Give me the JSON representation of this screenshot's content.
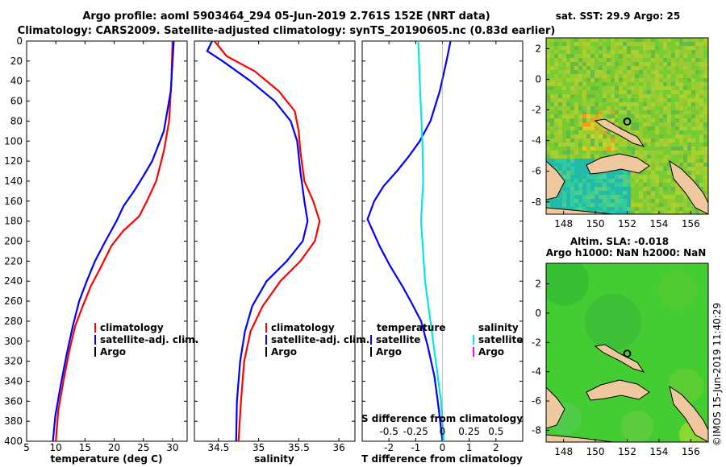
{
  "header": {
    "line1": "Argo profile: aoml 5903464_294 05-Jun-2019 2.761S 152E (NRT data)",
    "line2": "Climatology: CARS2009. Satellite-adjusted climatology: synTS_20190605.nc (0.83d earlier)"
  },
  "side_stamp": "©IMOS 15-Jun-2019 11:40:29",
  "colors": {
    "red": "#ff0000",
    "blue": "#0000ff",
    "cyan": "#00e5ee",
    "black": "#000000",
    "land": "#f0c8a0",
    "magenta": "#ff00ff"
  },
  "chart_data": [
    {
      "type": "line",
      "name": "temperature-profile",
      "xlabel": "temperature (deg C)",
      "xlim": [
        5,
        32.5
      ],
      "ylim": [
        0,
        400
      ],
      "xticks": [
        "5",
        "10",
        "15",
        "20",
        "25",
        "30"
      ],
      "yticks": [
        "0",
        "20",
        "40",
        "60",
        "80",
        "100",
        "120",
        "140",
        "160",
        "180",
        "200",
        "220",
        "240",
        "260",
        "280",
        "300",
        "320",
        "340",
        "360",
        "380",
        "400"
      ],
      "legend": [
        "climatology",
        "satellite-adj. clim.",
        "Argo"
      ],
      "series": [
        {
          "name": "climatology",
          "color": "#ff0000",
          "points": [
            [
              30,
              0
            ],
            [
              29.8,
              40
            ],
            [
              29.4,
              80
            ],
            [
              28.5,
              110
            ],
            [
              27.2,
              140
            ],
            [
              25.6,
              160
            ],
            [
              24.3,
              175
            ],
            [
              21.5,
              190
            ],
            [
              19.5,
              205
            ],
            [
              17.8,
              225
            ],
            [
              16,
              245
            ],
            [
              14.6,
              265
            ],
            [
              13.3,
              285
            ],
            [
              12.3,
              310
            ],
            [
              11.3,
              340
            ],
            [
              10.4,
              370
            ],
            [
              10,
              400
            ]
          ]
        },
        {
          "name": "satellite-adj. clim.",
          "color": "#0000ff",
          "points": [
            [
              30.2,
              0
            ],
            [
              30,
              20
            ],
            [
              29.7,
              50
            ],
            [
              28.5,
              90
            ],
            [
              26.5,
              120
            ],
            [
              25,
              135
            ],
            [
              23.4,
              150
            ],
            [
              21.6,
              165
            ],
            [
              20.4,
              180
            ],
            [
              18.5,
              200
            ],
            [
              16.7,
              220
            ],
            [
              15.3,
              240
            ],
            [
              14,
              260
            ],
            [
              12.9,
              285
            ],
            [
              11.8,
              315
            ],
            [
              10.8,
              345
            ],
            [
              9.9,
              375
            ],
            [
              9.5,
              400
            ]
          ]
        }
      ]
    },
    {
      "type": "line",
      "name": "salinity-profile",
      "xlabel": "salinity",
      "xlim": [
        34.2,
        36.2
      ],
      "ylim": [
        0,
        400
      ],
      "xticks": [
        "34.5",
        "35",
        "35.5",
        "36"
      ],
      "legend": [
        "climatology",
        "satellite-adj. clim.",
        "Argo"
      ],
      "series": [
        {
          "name": "climatology",
          "color": "#ff0000",
          "points": [
            [
              34.45,
              0
            ],
            [
              34.6,
              15
            ],
            [
              34.95,
              30
            ],
            [
              35.25,
              50
            ],
            [
              35.45,
              70
            ],
            [
              35.5,
              90
            ],
            [
              35.52,
              110
            ],
            [
              35.57,
              140
            ],
            [
              35.68,
              160
            ],
            [
              35.76,
              180
            ],
            [
              35.7,
              200
            ],
            [
              35.52,
              220
            ],
            [
              35.27,
              240
            ],
            [
              35.05,
              265
            ],
            [
              34.9,
              290
            ],
            [
              34.82,
              320
            ],
            [
              34.78,
              360
            ],
            [
              34.75,
              400
            ]
          ]
        },
        {
          "name": "satellite-adj. clim.",
          "color": "#0000ff",
          "points": [
            [
              34.42,
              0
            ],
            [
              34.36,
              10
            ],
            [
              34.55,
              20
            ],
            [
              34.9,
              40
            ],
            [
              35.2,
              60
            ],
            [
              35.4,
              80
            ],
            [
              35.48,
              100
            ],
            [
              35.52,
              130
            ],
            [
              35.57,
              160
            ],
            [
              35.61,
              180
            ],
            [
              35.55,
              200
            ],
            [
              35.35,
              220
            ],
            [
              35.1,
              240
            ],
            [
              34.92,
              265
            ],
            [
              34.83,
              290
            ],
            [
              34.77,
              320
            ],
            [
              34.73,
              360
            ],
            [
              34.72,
              400
            ]
          ]
        }
      ]
    },
    {
      "type": "line",
      "name": "difference-profile",
      "xlabel": "T difference from climatology",
      "xlabel_top": "S difference from climatology",
      "xlim": [
        -3,
        3
      ],
      "ylim": [
        0,
        400
      ],
      "xticks": [
        "-2",
        "-1",
        "0",
        "1",
        "2"
      ],
      "xticks_s": [
        "-0.5",
        "-0.25",
        "0",
        "0.25",
        "0.5"
      ],
      "legend": {
        "temperature_title": "temperature",
        "salinity_title": "salinity",
        "satellite": "satellite",
        "argo": "Argo"
      },
      "series": [
        {
          "name": "temperature satellite",
          "color": "#0000ff",
          "points": [
            [
              0.3,
              0
            ],
            [
              0.15,
              20
            ],
            [
              -0.1,
              50
            ],
            [
              -0.45,
              80
            ],
            [
              -0.85,
              100
            ],
            [
              -1.25,
              115
            ],
            [
              -1.7,
              130
            ],
            [
              -2.2,
              145
            ],
            [
              -2.55,
              160
            ],
            [
              -2.8,
              178
            ],
            [
              -2.6,
              190
            ],
            [
              -2.35,
              205
            ],
            [
              -1.95,
              225
            ],
            [
              -1.5,
              245
            ],
            [
              -1.15,
              262
            ],
            [
              -0.8,
              280
            ],
            [
              -0.55,
              305
            ],
            [
              -0.3,
              335
            ],
            [
              -0.15,
              365
            ],
            [
              0,
              400
            ]
          ]
        },
        {
          "name": "salinity satellite",
          "color": "#00e5ee",
          "points": [
            [
              -0.9,
              0
            ],
            [
              -0.85,
              40
            ],
            [
              -0.75,
              100
            ],
            [
              -0.72,
              140
            ],
            [
              -0.8,
              180
            ],
            [
              -0.75,
              200
            ],
            [
              -0.65,
              240
            ],
            [
              -0.45,
              280
            ],
            [
              -0.25,
              320
            ],
            [
              -0.05,
              360
            ],
            [
              0.05,
              400
            ]
          ]
        }
      ]
    },
    {
      "type": "heatmap",
      "name": "sst-map",
      "title": "sat. SST: 29.9 Argo: 25",
      "xticks": [
        "148",
        "150",
        "152",
        "154",
        "156"
      ],
      "yticks": [
        "2",
        "0",
        "-2",
        "-4",
        "-6",
        "-8"
      ],
      "float_position": {
        "lon": 152,
        "lat": -2.761
      }
    },
    {
      "type": "heatmap",
      "name": "sla-map",
      "title_line1": "Altim. SLA: -0.018",
      "title_line2": "Argo h1000: NaN h2000: NaN",
      "xticks": [
        "148",
        "150",
        "152",
        "154",
        "156"
      ],
      "yticks": [
        "2",
        "0",
        "-2",
        "-4",
        "-6",
        "-8"
      ],
      "float_position": {
        "lon": 152,
        "lat": -2.761
      }
    }
  ]
}
